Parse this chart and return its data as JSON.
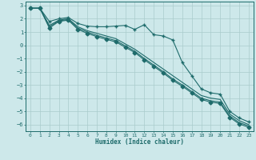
{
  "xlabel": "Humidex (Indice chaleur)",
  "xlim": [
    -0.5,
    23.5
  ],
  "ylim": [
    -6.5,
    3.3
  ],
  "yticks": [
    3,
    2,
    1,
    0,
    -1,
    -2,
    -3,
    -4,
    -5,
    -6
  ],
  "xticks": [
    0,
    1,
    2,
    3,
    4,
    5,
    6,
    7,
    8,
    9,
    10,
    11,
    12,
    13,
    14,
    15,
    16,
    17,
    18,
    19,
    20,
    21,
    22,
    23
  ],
  "bg_color": "#cde8ea",
  "grid_color": "#aacccc",
  "line_color": "#1e6b6b",
  "lines": [
    {
      "x": [
        0,
        1,
        2,
        3,
        4,
        5,
        6,
        7,
        8,
        9,
        10,
        11,
        12,
        13,
        14,
        15,
        16,
        17,
        18,
        19,
        20,
        21,
        22,
        23
      ],
      "y": [
        2.8,
        2.8,
        1.8,
        2.0,
        2.1,
        1.65,
        1.45,
        1.4,
        1.4,
        1.45,
        1.5,
        1.2,
        1.55,
        0.8,
        0.7,
        0.4,
        -1.3,
        -2.3,
        -3.3,
        -3.6,
        -3.7,
        -5.0,
        -5.5,
        -5.8
      ],
      "marker": "+"
    },
    {
      "x": [
        0,
        1,
        2,
        3,
        4,
        5,
        6,
        7,
        8,
        9,
        10,
        11,
        12,
        13,
        14,
        15,
        16,
        17,
        18,
        19,
        20,
        21,
        22,
        23
      ],
      "y": [
        2.8,
        2.8,
        1.5,
        1.9,
        2.0,
        1.4,
        1.1,
        0.9,
        0.7,
        0.5,
        0.1,
        -0.3,
        -0.8,
        -1.3,
        -1.8,
        -2.3,
        -2.8,
        -3.3,
        -3.8,
        -4.0,
        -4.1,
        -5.2,
        -5.7,
        -6.0
      ],
      "marker": null
    },
    {
      "x": [
        0,
        1,
        2,
        3,
        4,
        5,
        6,
        7,
        8,
        9,
        10,
        11,
        12,
        13,
        14,
        15,
        16,
        17,
        18,
        19,
        20,
        21,
        22,
        23
      ],
      "y": [
        2.8,
        2.8,
        1.4,
        1.85,
        1.95,
        1.3,
        1.0,
        0.75,
        0.55,
        0.35,
        -0.05,
        -0.45,
        -1.0,
        -1.5,
        -2.0,
        -2.55,
        -3.0,
        -3.5,
        -4.0,
        -4.2,
        -4.3,
        -5.35,
        -5.85,
        -6.1
      ],
      "marker": null
    },
    {
      "x": [
        0,
        1,
        2,
        3,
        4,
        5,
        6,
        7,
        8,
        9,
        10,
        11,
        12,
        13,
        14,
        15,
        16,
        17,
        18,
        19,
        20,
        21,
        22,
        23
      ],
      "y": [
        2.8,
        2.8,
        1.3,
        1.8,
        1.9,
        1.2,
        0.9,
        0.65,
        0.45,
        0.25,
        -0.15,
        -0.55,
        -1.1,
        -1.6,
        -2.1,
        -2.65,
        -3.1,
        -3.6,
        -4.1,
        -4.3,
        -4.4,
        -5.45,
        -5.95,
        -6.2
      ],
      "marker": "D"
    }
  ]
}
